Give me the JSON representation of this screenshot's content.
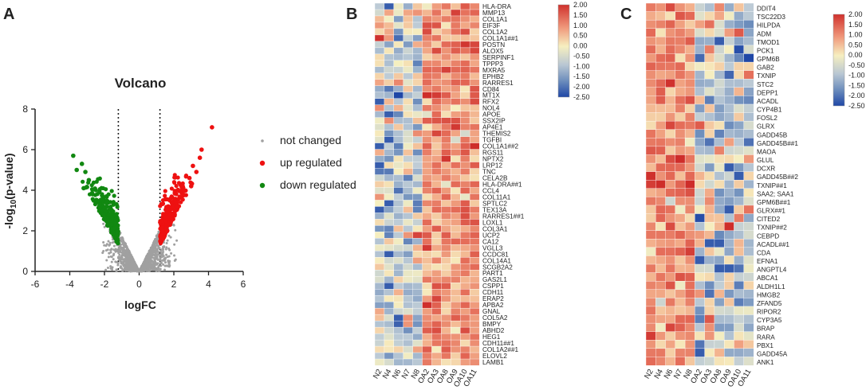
{
  "panels": {
    "a": "A",
    "b": "B",
    "c": "C"
  },
  "chart_data": [
    {
      "type": "scatter",
      "title": "Volcano",
      "xlabel": "logFC",
      "ylabel_prefix": "-log",
      "ylabel_sub": "10",
      "ylabel_suffix": "(p-value)",
      "xlim": [
        -6,
        6
      ],
      "ylim": [
        0,
        8
      ],
      "xticks": [
        -6,
        -4,
        -2,
        0,
        2,
        4,
        6
      ],
      "yticks": [
        0,
        2,
        4,
        6,
        8
      ],
      "thresholds_x": [
        -1.2,
        1.2
      ],
      "legend": {
        "position": "right",
        "entries": [
          {
            "label": "not changed",
            "color": "#a0a0a0"
          },
          {
            "label": "up regulated",
            "color": "#ee1111"
          },
          {
            "label": "down regulated",
            "color": "#118811"
          }
        ]
      },
      "highlight_points": {
        "up": [
          [
            4.2,
            7.1
          ],
          [
            3.6,
            6.0
          ],
          [
            3.5,
            5.6
          ],
          [
            3.1,
            5.2
          ],
          [
            3.3,
            4.9
          ],
          [
            2.9,
            4.6
          ],
          [
            3.0,
            4.2
          ]
        ],
        "down": [
          [
            -3.8,
            5.7
          ],
          [
            -3.3,
            5.3
          ],
          [
            -3.1,
            4.9
          ],
          [
            -3.6,
            5.0
          ],
          [
            -2.9,
            4.5
          ],
          [
            -3.2,
            4.1
          ]
        ]
      }
    },
    {
      "type": "heatmap",
      "samples": [
        "N2",
        "N4",
        "N6",
        "N7",
        "N8",
        "OA2",
        "OA3",
        "OA8",
        "OA9",
        "OA10",
        "OA11"
      ],
      "genes": [
        "HLA-DRA",
        "MMP13",
        "COL1A1",
        "EIF3F",
        "COL1A2",
        "COL1A1##1",
        "POSTN",
        "ALOX5",
        "SERPINF1",
        "TPPP3",
        "MXRA5",
        "EPHB2",
        "RARRES1",
        "CD84",
        "MT1X",
        "RFX2",
        "NOL4",
        "APOE",
        "SSX2IP",
        "AP4E1",
        "THEMIS2",
        "TGFBI",
        "COL1A1##2",
        "RGS11",
        "NPTX2",
        "LRP12",
        "TNC",
        "CELA2B",
        "HLA-DRA##1",
        "CCL4",
        "COL11A1",
        "SPTLC2",
        "TEX13A",
        "RARRES1##1",
        "LOXL1",
        "COL3A1",
        "UCP2",
        "CA12",
        "VGLL3",
        "CCDC81",
        "COL14A1",
        "SCGB2A2",
        "PART1",
        "GAS2L1",
        "CSPP1",
        "CDH11",
        "ERAP2",
        "APBA2",
        "GNAL",
        "COL5A2",
        "BMPY",
        "ABHD2",
        "HEG1",
        "CDH11##1",
        "COL1A2##1",
        "ELOVL2",
        "LAMB1"
      ],
      "colorbar_ticks": [
        "2.00",
        "1.50",
        "1.00",
        "0.50",
        "0.00",
        "-0.50",
        "-1.00",
        "-1.50",
        "-2.00",
        "-2.50"
      ],
      "vrange": [
        -2.5,
        2.0
      ],
      "high_group": "OA"
    },
    {
      "type": "heatmap",
      "samples": [
        "N2",
        "N4",
        "N6",
        "N7",
        "N8",
        "OA2",
        "OA3",
        "OA8",
        "OA9",
        "OA10",
        "OA11"
      ],
      "genes": [
        "DDIT4",
        "TSC22D3",
        "HILPDA",
        "ADM",
        "TMOD1",
        "PCK1",
        "GPM6B",
        "GAB2",
        "TXNIP",
        "STC2",
        "DEPP1",
        "ACADL",
        "CYP4B1",
        "FOSL2",
        "GLRX",
        "GADD45B",
        "GADD45B##1",
        "MAOA",
        "GLUL",
        "DCXR",
        "GADD45B##2",
        "TXNIP##1",
        "SAA2; SAA1",
        "GPM6B##1",
        "GLRX##1",
        "CITED2",
        "TXNIP##2",
        "CEBPD",
        "ACADL##1",
        "CDA",
        "EFNA1",
        "ANGPTL4",
        "ABCA1",
        "ALDH1L1",
        "HMGB2",
        "ZFAND5",
        "RIPOR2",
        "CYP3A5",
        "BRAP",
        "RARA",
        "PBX1",
        "GADD45A",
        "ANK1"
      ],
      "colorbar_ticks": [
        "2.00",
        "1.50",
        "1.00",
        "0.50",
        "0.00",
        "-0.50",
        "-1.00",
        "-1.50",
        "-2.00",
        "-2.50"
      ],
      "vrange": [
        -2.5,
        2.0
      ],
      "high_group": "N"
    }
  ]
}
